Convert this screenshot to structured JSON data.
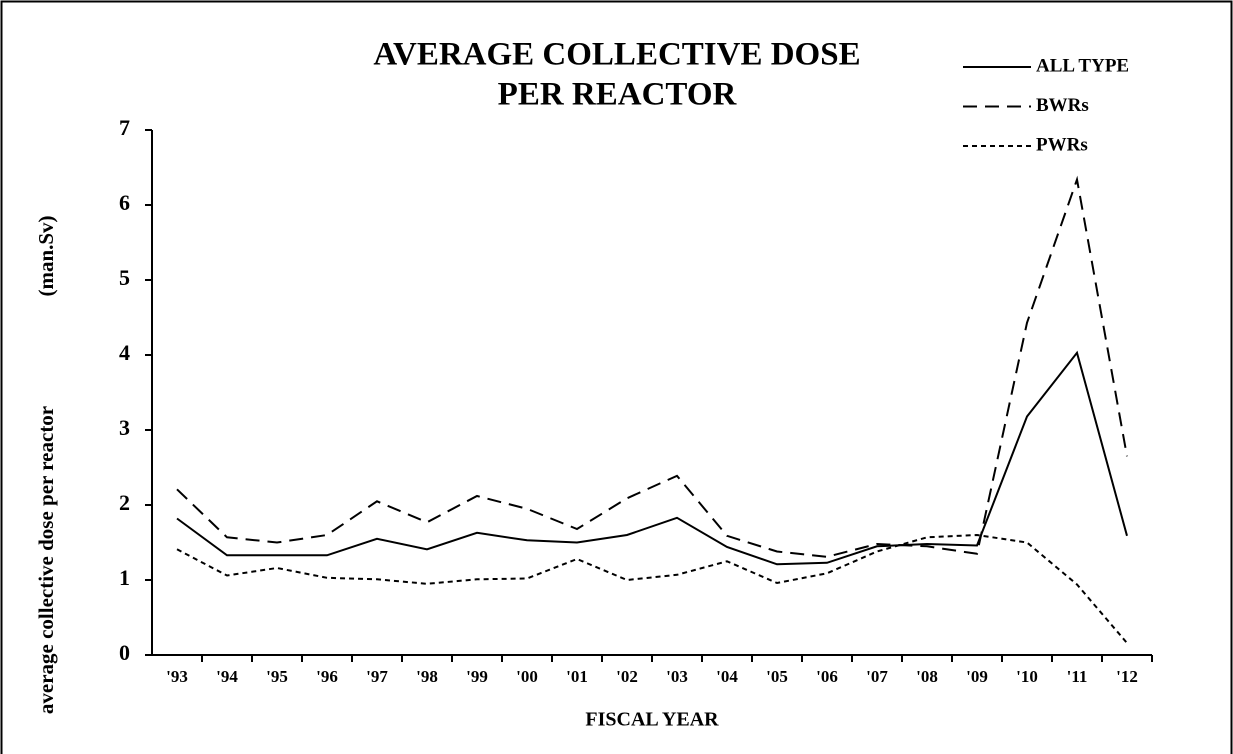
{
  "chart_data": {
    "type": "line",
    "title": [
      "AVERAGE  COLLECTIVE  DOSE",
      "PER REACTOR"
    ],
    "xlabel": "FISCAL YEAR",
    "ylabel": [
      "average collective dose per reactor",
      "(man.Sv)"
    ],
    "categories": [
      "'93",
      "'94",
      "'95",
      "'96",
      "'97",
      "'98",
      "'99",
      "'00",
      "'01",
      "'02",
      "'03",
      "'04",
      "'05",
      "'06",
      "'07",
      "'08",
      "'09",
      "'10",
      "'11",
      "'12"
    ],
    "series": [
      {
        "name": "ALL TYPE",
        "color": "#000000",
        "dash": "solid",
        "values": [
          1.82,
          1.33,
          1.33,
          1.33,
          1.55,
          1.41,
          1.63,
          1.53,
          1.5,
          1.6,
          1.83,
          1.44,
          1.21,
          1.23,
          1.45,
          1.48,
          1.46,
          3.18,
          4.03,
          1.59
        ]
      },
      {
        "name": "BWRs",
        "color": "#000000",
        "dash": "dashed",
        "values": [
          2.21,
          1.57,
          1.5,
          1.6,
          2.05,
          1.77,
          2.12,
          1.95,
          1.68,
          2.09,
          2.39,
          1.59,
          1.38,
          1.31,
          1.48,
          1.45,
          1.35,
          4.43,
          6.34,
          2.65
        ]
      },
      {
        "name": "PWRs",
        "color": "#000000",
        "dash": "dotted",
        "values": [
          1.41,
          1.06,
          1.16,
          1.03,
          1.01,
          0.95,
          1.01,
          1.02,
          1.28,
          1.0,
          1.07,
          1.25,
          0.96,
          1.09,
          1.38,
          1.57,
          1.6,
          1.5,
          0.94,
          0.16
        ]
      }
    ],
    "ylim": [
      0,
      7
    ],
    "yticks": [
      0,
      1,
      2,
      3,
      4,
      5,
      6,
      7
    ],
    "legend": "top-right"
  }
}
